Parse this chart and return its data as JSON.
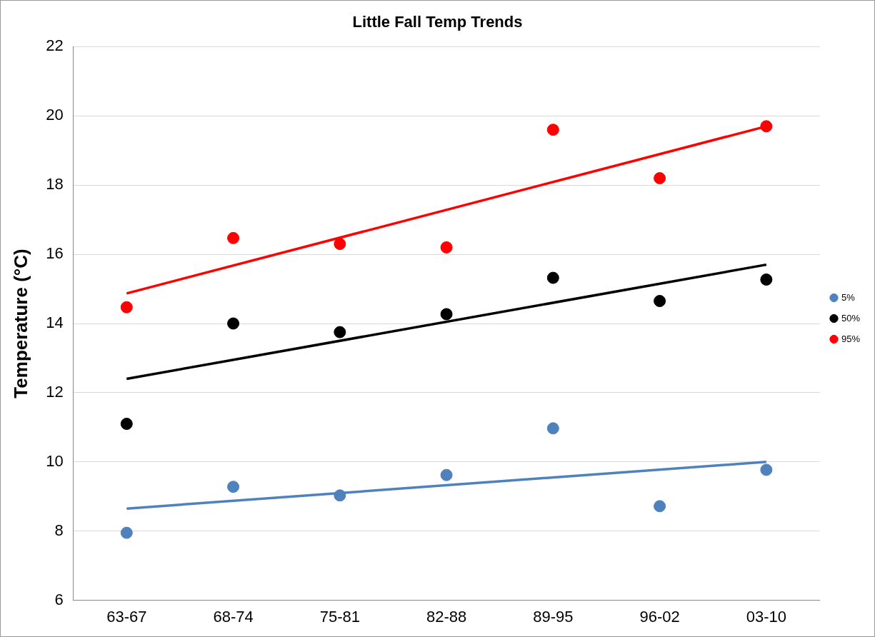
{
  "chart_data": {
    "type": "scatter",
    "title": "Little Fall Temp Trends",
    "ylabel": "Temperature (°C)",
    "categories": [
      "63-67",
      "68-74",
      "75-81",
      "82-88",
      "89-95",
      "96-02",
      "03-10"
    ],
    "ylim": [
      6,
      22
    ],
    "yticks": [
      6,
      8,
      10,
      12,
      14,
      16,
      18,
      20,
      22
    ],
    "grid": "y",
    "legend": "right",
    "marker": "circle",
    "series": [
      {
        "name": "5%",
        "color": "#4f81bd",
        "values": [
          7.95,
          9.28,
          9.03,
          9.62,
          10.97,
          8.72,
          9.77
        ]
      },
      {
        "name": "50%",
        "color": "#000000",
        "values": [
          11.1,
          14.0,
          13.75,
          14.27,
          15.32,
          14.65,
          15.27
        ]
      },
      {
        "name": "95%",
        "color": "#ff0000",
        "values": [
          14.47,
          16.47,
          16.3,
          16.2,
          19.6,
          18.2,
          19.7
        ]
      },
      {
        "type": "line",
        "marker": "none",
        "color": "#4f81bd",
        "values": [
          8.65,
          null,
          null,
          null,
          null,
          null,
          10.0
        ]
      },
      {
        "type": "line",
        "marker": "none",
        "color": "#000000",
        "values": [
          12.4,
          null,
          null,
          null,
          null,
          null,
          15.7
        ]
      },
      {
        "type": "line",
        "marker": "none",
        "color": "#ff0000",
        "values": [
          14.87,
          null,
          null,
          null,
          null,
          null,
          19.7
        ]
      }
    ]
  }
}
